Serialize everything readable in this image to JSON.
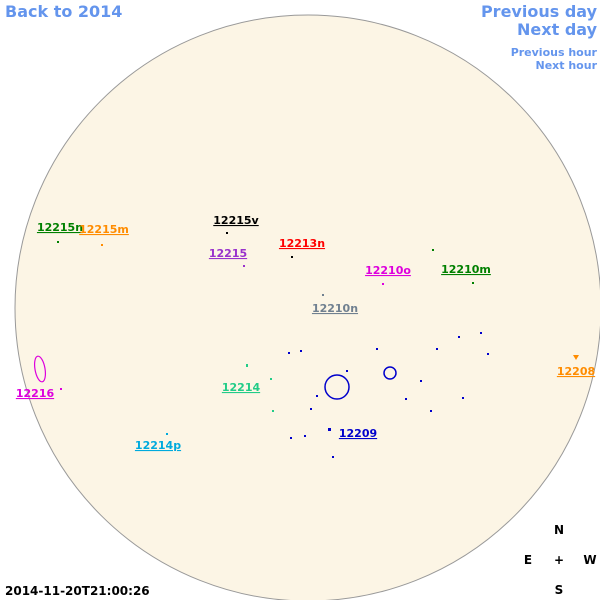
{
  "navigation": {
    "back": "Back to 2014",
    "previous_day": "Previous day",
    "next_day": "Next day",
    "previous_hour": "Previous hour",
    "next_hour": "Next hour"
  },
  "timestamp": "2014-11-20T21:00:26",
  "compass": {
    "north": "N",
    "east": "E",
    "center": "+",
    "west": "W",
    "south": "S"
  },
  "regions": [
    {
      "label": "12215n",
      "color": "#008000"
    },
    {
      "label": "12215m",
      "color": "#ff8c00"
    },
    {
      "label": "12215v",
      "color": "#000000"
    },
    {
      "label": "12215",
      "color": "#9932cc"
    },
    {
      "label": "12213n",
      "color": "#ff0000"
    },
    {
      "label": "12210o",
      "color": "#dd00dd"
    },
    {
      "label": "12210m",
      "color": "#008000"
    },
    {
      "label": "12210n",
      "color": "#708090"
    },
    {
      "label": "12214",
      "color": "#22cc88"
    },
    {
      "label": "12216",
      "color": "#dd00dd"
    },
    {
      "label": "12214p",
      "color": "#00aadd"
    },
    {
      "label": "12209",
      "color": "#0000cc"
    },
    {
      "label": "12208",
      "color": "#ff8c00"
    }
  ]
}
